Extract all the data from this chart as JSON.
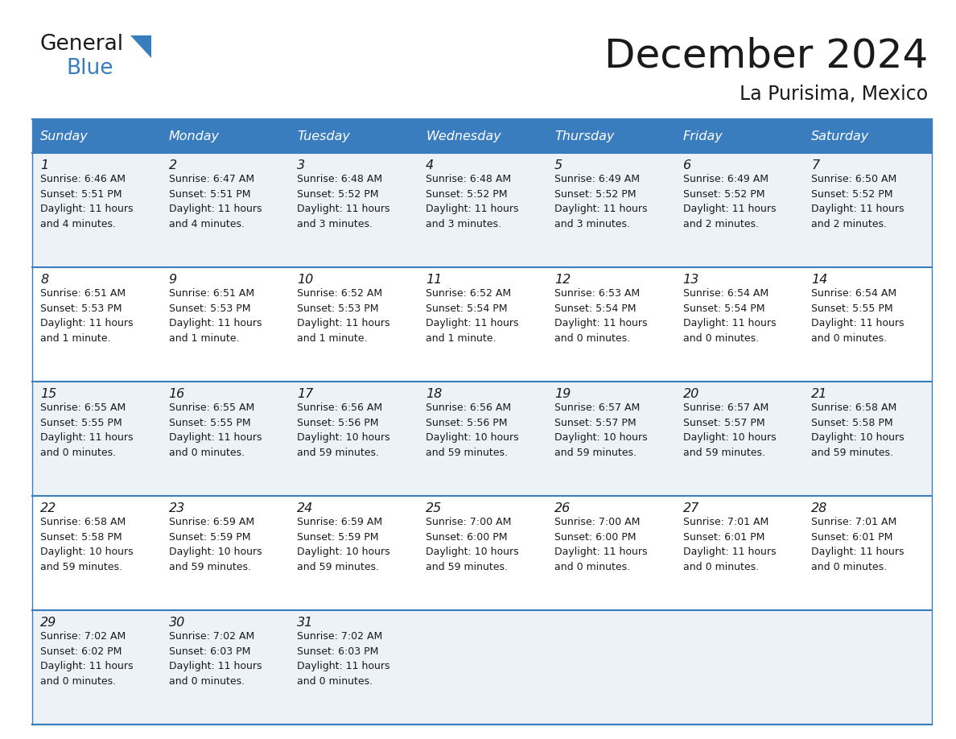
{
  "title": "December 2024",
  "subtitle": "La Purisima, Mexico",
  "header_bg_color": "#3a7dbf",
  "header_text_color": "#ffffff",
  "row_bg_colors": [
    "#edf2f7",
    "#ffffff"
  ],
  "border_color": "#3a7dbf",
  "text_color": "#1a1a1a",
  "days_of_week": [
    "Sunday",
    "Monday",
    "Tuesday",
    "Wednesday",
    "Thursday",
    "Friday",
    "Saturday"
  ],
  "calendar_data": [
    [
      {
        "day": "1",
        "sunrise": "6:46 AM",
        "sunset": "5:51 PM",
        "daylight_line1": "Daylight: 11 hours",
        "daylight_line2": "and 4 minutes."
      },
      {
        "day": "2",
        "sunrise": "6:47 AM",
        "sunset": "5:51 PM",
        "daylight_line1": "Daylight: 11 hours",
        "daylight_line2": "and 4 minutes."
      },
      {
        "day": "3",
        "sunrise": "6:48 AM",
        "sunset": "5:52 PM",
        "daylight_line1": "Daylight: 11 hours",
        "daylight_line2": "and 3 minutes."
      },
      {
        "day": "4",
        "sunrise": "6:48 AM",
        "sunset": "5:52 PM",
        "daylight_line1": "Daylight: 11 hours",
        "daylight_line2": "and 3 minutes."
      },
      {
        "day": "5",
        "sunrise": "6:49 AM",
        "sunset": "5:52 PM",
        "daylight_line1": "Daylight: 11 hours",
        "daylight_line2": "and 3 minutes."
      },
      {
        "day": "6",
        "sunrise": "6:49 AM",
        "sunset": "5:52 PM",
        "daylight_line1": "Daylight: 11 hours",
        "daylight_line2": "and 2 minutes."
      },
      {
        "day": "7",
        "sunrise": "6:50 AM",
        "sunset": "5:52 PM",
        "daylight_line1": "Daylight: 11 hours",
        "daylight_line2": "and 2 minutes."
      }
    ],
    [
      {
        "day": "8",
        "sunrise": "6:51 AM",
        "sunset": "5:53 PM",
        "daylight_line1": "Daylight: 11 hours",
        "daylight_line2": "and 1 minute."
      },
      {
        "day": "9",
        "sunrise": "6:51 AM",
        "sunset": "5:53 PM",
        "daylight_line1": "Daylight: 11 hours",
        "daylight_line2": "and 1 minute."
      },
      {
        "day": "10",
        "sunrise": "6:52 AM",
        "sunset": "5:53 PM",
        "daylight_line1": "Daylight: 11 hours",
        "daylight_line2": "and 1 minute."
      },
      {
        "day": "11",
        "sunrise": "6:52 AM",
        "sunset": "5:54 PM",
        "daylight_line1": "Daylight: 11 hours",
        "daylight_line2": "and 1 minute."
      },
      {
        "day": "12",
        "sunrise": "6:53 AM",
        "sunset": "5:54 PM",
        "daylight_line1": "Daylight: 11 hours",
        "daylight_line2": "and 0 minutes."
      },
      {
        "day": "13",
        "sunrise": "6:54 AM",
        "sunset": "5:54 PM",
        "daylight_line1": "Daylight: 11 hours",
        "daylight_line2": "and 0 minutes."
      },
      {
        "day": "14",
        "sunrise": "6:54 AM",
        "sunset": "5:55 PM",
        "daylight_line1": "Daylight: 11 hours",
        "daylight_line2": "and 0 minutes."
      }
    ],
    [
      {
        "day": "15",
        "sunrise": "6:55 AM",
        "sunset": "5:55 PM",
        "daylight_line1": "Daylight: 11 hours",
        "daylight_line2": "and 0 minutes."
      },
      {
        "day": "16",
        "sunrise": "6:55 AM",
        "sunset": "5:55 PM",
        "daylight_line1": "Daylight: 11 hours",
        "daylight_line2": "and 0 minutes."
      },
      {
        "day": "17",
        "sunrise": "6:56 AM",
        "sunset": "5:56 PM",
        "daylight_line1": "Daylight: 10 hours",
        "daylight_line2": "and 59 minutes."
      },
      {
        "day": "18",
        "sunrise": "6:56 AM",
        "sunset": "5:56 PM",
        "daylight_line1": "Daylight: 10 hours",
        "daylight_line2": "and 59 minutes."
      },
      {
        "day": "19",
        "sunrise": "6:57 AM",
        "sunset": "5:57 PM",
        "daylight_line1": "Daylight: 10 hours",
        "daylight_line2": "and 59 minutes."
      },
      {
        "day": "20",
        "sunrise": "6:57 AM",
        "sunset": "5:57 PM",
        "daylight_line1": "Daylight: 10 hours",
        "daylight_line2": "and 59 minutes."
      },
      {
        "day": "21",
        "sunrise": "6:58 AM",
        "sunset": "5:58 PM",
        "daylight_line1": "Daylight: 10 hours",
        "daylight_line2": "and 59 minutes."
      }
    ],
    [
      {
        "day": "22",
        "sunrise": "6:58 AM",
        "sunset": "5:58 PM",
        "daylight_line1": "Daylight: 10 hours",
        "daylight_line2": "and 59 minutes."
      },
      {
        "day": "23",
        "sunrise": "6:59 AM",
        "sunset": "5:59 PM",
        "daylight_line1": "Daylight: 10 hours",
        "daylight_line2": "and 59 minutes."
      },
      {
        "day": "24",
        "sunrise": "6:59 AM",
        "sunset": "5:59 PM",
        "daylight_line1": "Daylight: 10 hours",
        "daylight_line2": "and 59 minutes."
      },
      {
        "day": "25",
        "sunrise": "7:00 AM",
        "sunset": "6:00 PM",
        "daylight_line1": "Daylight: 10 hours",
        "daylight_line2": "and 59 minutes."
      },
      {
        "day": "26",
        "sunrise": "7:00 AM",
        "sunset": "6:00 PM",
        "daylight_line1": "Daylight: 11 hours",
        "daylight_line2": "and 0 minutes."
      },
      {
        "day": "27",
        "sunrise": "7:01 AM",
        "sunset": "6:01 PM",
        "daylight_line1": "Daylight: 11 hours",
        "daylight_line2": "and 0 minutes."
      },
      {
        "day": "28",
        "sunrise": "7:01 AM",
        "sunset": "6:01 PM",
        "daylight_line1": "Daylight: 11 hours",
        "daylight_line2": "and 0 minutes."
      }
    ],
    [
      {
        "day": "29",
        "sunrise": "7:02 AM",
        "sunset": "6:02 PM",
        "daylight_line1": "Daylight: 11 hours",
        "daylight_line2": "and 0 minutes."
      },
      {
        "day": "30",
        "sunrise": "7:02 AM",
        "sunset": "6:03 PM",
        "daylight_line1": "Daylight: 11 hours",
        "daylight_line2": "and 0 minutes."
      },
      {
        "day": "31",
        "sunrise": "7:02 AM",
        "sunset": "6:03 PM",
        "daylight_line1": "Daylight: 11 hours",
        "daylight_line2": "and 0 minutes."
      },
      null,
      null,
      null,
      null
    ]
  ],
  "logo_text1": "General",
  "logo_text2": "Blue",
  "logo_color1": "#1a1a1a",
  "logo_color2": "#3a7dbf",
  "fig_width": 11.88,
  "fig_height": 9.18,
  "dpi": 100
}
